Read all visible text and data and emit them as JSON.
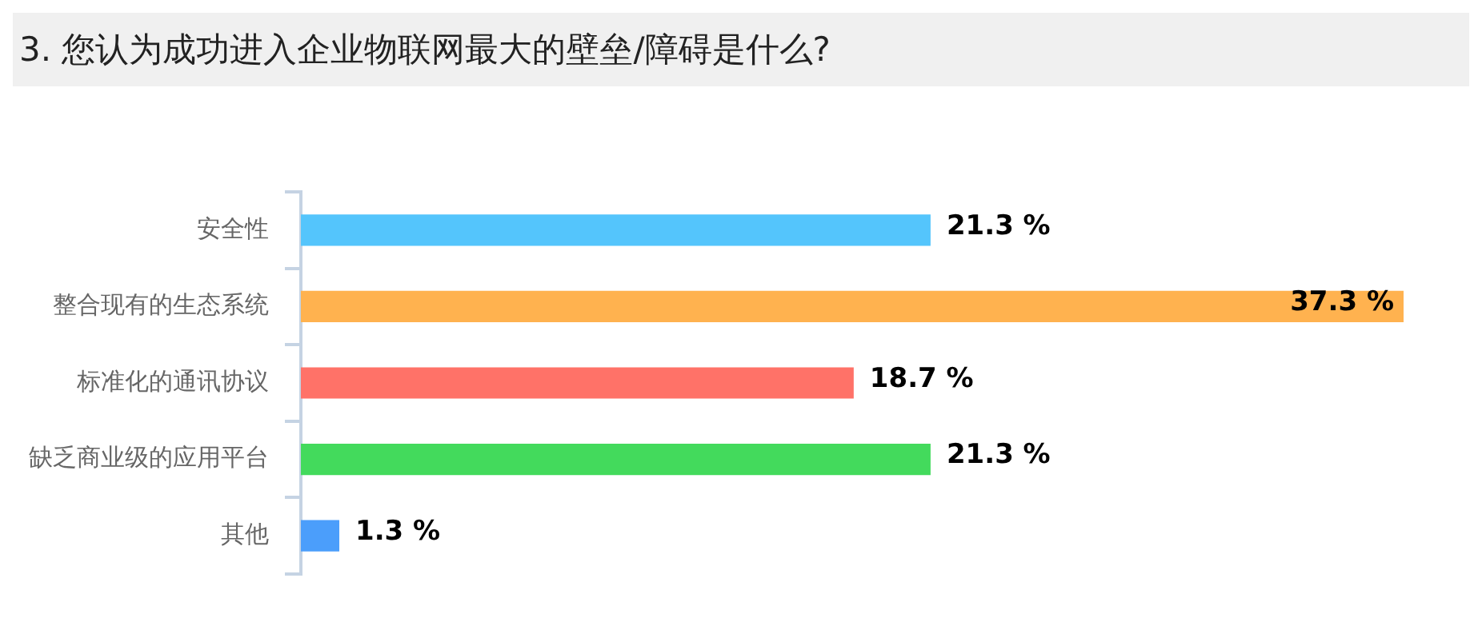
{
  "chart_data": {
    "type": "bar",
    "orientation": "horizontal",
    "title": "3. 您认为成功进入企业物联网最大的壁垒/障碍是什么?",
    "categories": [
      "安全性",
      "整合现有的生态系统",
      "标准化的通讯协议",
      "缺乏商业级的应用平台",
      "其他"
    ],
    "values": [
      21.3,
      37.3,
      18.7,
      21.3,
      1.3
    ],
    "colors": [
      "#54c5fc",
      "#ffb24f",
      "#ff7268",
      "#43da5c",
      "#4b9efb"
    ],
    "value_labels": [
      "21.3 %",
      "37.3 %",
      "18.7 %",
      "21.3 %",
      "1.3 %"
    ]
  }
}
